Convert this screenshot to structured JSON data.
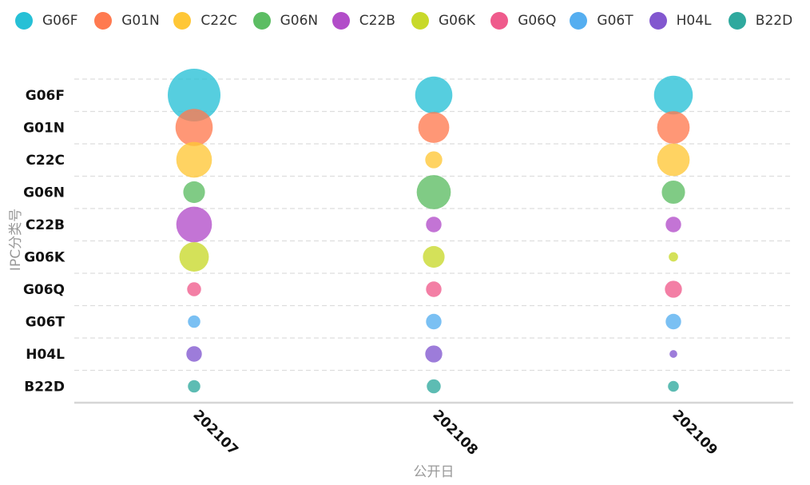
{
  "chart_data": {
    "type": "scatter",
    "subtype": "bubble",
    "xlabel": "公开日",
    "ylabel": "IPC分类号",
    "x_categories": [
      "202107",
      "202108",
      "202109"
    ],
    "y_categories": [
      "G06F",
      "G01N",
      "C22C",
      "G06N",
      "C22B",
      "G06K",
      "G06Q",
      "G06T",
      "H04L",
      "B22D"
    ],
    "grid": "horizontal-dashed",
    "legend_position": "top",
    "series": [
      {
        "name": "G06F",
        "color": "#26c0d6",
        "values": [
          34,
          24,
          25
        ]
      },
      {
        "name": "G01N",
        "color": "#ff7a50",
        "values": [
          24,
          20,
          21
        ]
      },
      {
        "name": "C22C",
        "color": "#ffc736",
        "values": [
          23,
          11,
          21
        ]
      },
      {
        "name": "G06N",
        "color": "#5cbd63",
        "values": [
          14,
          22,
          15
        ]
      },
      {
        "name": "C22B",
        "color": "#b24dc9",
        "values": [
          23,
          10,
          10
        ]
      },
      {
        "name": "G06K",
        "color": "#c8d92a",
        "values": [
          19,
          14,
          6
        ]
      },
      {
        "name": "G06Q",
        "color": "#ef5b8c",
        "values": [
          9,
          10,
          11
        ]
      },
      {
        "name": "G06T",
        "color": "#55aef0",
        "values": [
          8,
          10,
          10
        ]
      },
      {
        "name": "H04L",
        "color": "#8257cf",
        "values": [
          10,
          11,
          5
        ]
      },
      {
        "name": "B22D",
        "color": "#2fa99e",
        "values": [
          8,
          9,
          7
        ]
      }
    ]
  }
}
